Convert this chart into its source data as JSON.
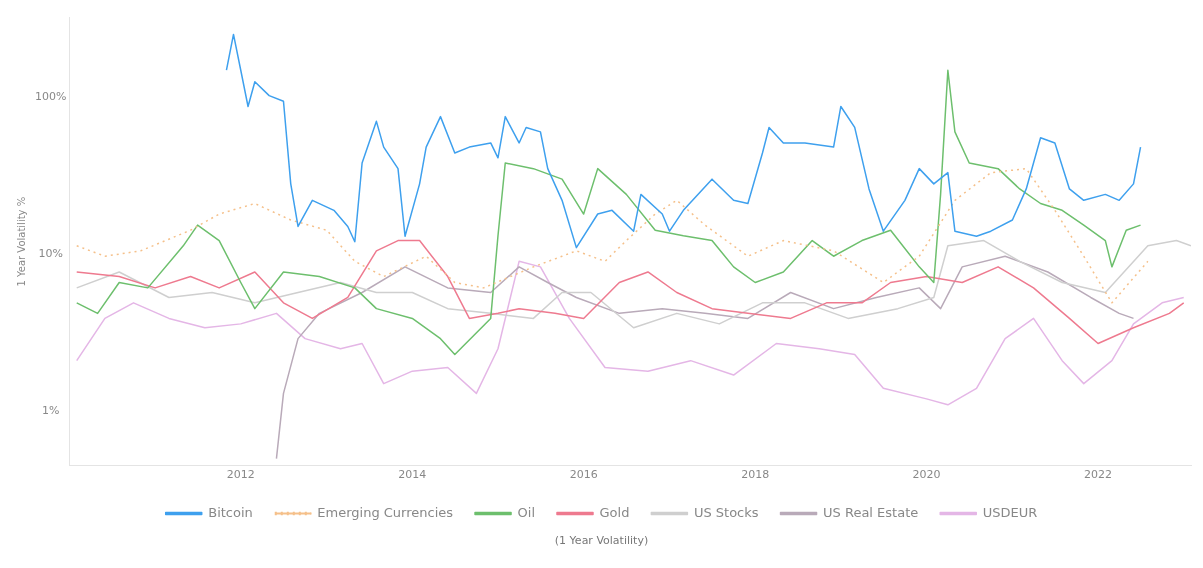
{
  "chart_data": {
    "type": "line",
    "ylabel": "1 Year Volatility %",
    "xlabel": "(1 Year Volatility)",
    "log": "y",
    "grid": false,
    "legend": "bottom",
    "marker": "none",
    "line_style": "solid",
    "xticks": [
      {
        "value": "2012-01-01",
        "label": "2012"
      },
      {
        "value": "2014-01-01",
        "label": "2014"
      },
      {
        "value": "2016-01-01",
        "label": "2016"
      },
      {
        "value": "2018-01-01",
        "label": "2018"
      },
      {
        "value": "2020-01-01",
        "label": "2020"
      },
      {
        "value": "2022-01-01",
        "label": "2022"
      }
    ],
    "xlim": [
      "2010-01",
      "2023-02"
    ],
    "ylim": [
      0.45,
      320
    ],
    "yticks": [
      {
        "value": 100,
        "label": "100%"
      },
      {
        "value": 10,
        "label": "10%"
      },
      {
        "value": 1,
        "label": "1%"
      }
    ],
    "series": [
      {
        "name": "Bitcoin",
        "color": "#3ea0ee",
        "x": [
          "2011-11",
          "2011-12",
          "2012-01",
          "2012-02",
          "2012-03",
          "2012-05",
          "2012-07",
          "2012-08",
          "2012-09",
          "2012-11",
          "2013-02",
          "2013-04",
          "2013-05",
          "2013-06",
          "2013-08",
          "2013-09",
          "2013-11",
          "2013-12",
          "2014-02",
          "2014-03",
          "2014-05",
          "2014-07",
          "2014-09",
          "2014-12",
          "2015-01",
          "2015-02",
          "2015-04",
          "2015-05",
          "2015-07",
          "2015-08",
          "2015-10",
          "2015-12",
          "2016-03",
          "2016-05",
          "2016-08",
          "2016-09",
          "2016-12",
          "2017-01",
          "2017-03",
          "2017-07",
          "2017-10",
          "2017-12",
          "2018-02",
          "2018-03",
          "2018-05",
          "2018-08",
          "2018-12",
          "2019-01",
          "2019-03",
          "2019-05",
          "2019-07",
          "2019-10",
          "2019-12",
          "2020-02",
          "2020-04",
          "2020-05",
          "2020-08",
          "2020-10",
          "2021-01",
          "2021-03",
          "2021-05",
          "2021-07",
          "2021-09",
          "2021-11",
          "2022-02",
          "2022-04",
          "2022-06",
          "2022-07"
        ],
        "values": [
          148,
          250,
          148,
          87,
          125,
          102,
          94,
          28,
          15,
          22,
          19,
          15,
          12,
          38,
          70,
          48,
          35,
          13,
          28,
          48,
          75,
          44,
          48,
          51,
          41,
          75,
          51,
          64,
          60,
          35,
          22,
          11,
          18,
          19,
          14,
          24,
          18,
          14,
          19,
          30,
          22,
          21,
          44,
          64,
          51,
          51,
          48,
          87,
          64,
          26,
          14,
          22,
          35,
          28,
          33,
          14,
          13,
          14,
          16.5,
          26,
          55,
          51,
          26,
          22,
          24,
          22,
          28,
          48
        ]
      },
      {
        "name": "Emerging Currencies",
        "color": "#f5c08a",
        "line_style": "dotted",
        "x": [
          "2010-02",
          "2010-06",
          "2010-11",
          "2011-06",
          "2011-10",
          "2012-03",
          "2012-08",
          "2013-01",
          "2013-05",
          "2013-09",
          "2014-03",
          "2014-07",
          "2014-11",
          "2015-06",
          "2015-10",
          "2015-12",
          "2016-04",
          "2016-07",
          "2016-11",
          "2017-02",
          "2017-06",
          "2017-12",
          "2018-05",
          "2018-12",
          "2019-07",
          "2019-12",
          "2020-05",
          "2020-10",
          "2021-03",
          "2021-07",
          "2021-11",
          "2022-03",
          "2022-08"
        ],
        "values": [
          11.3,
          9.7,
          10.5,
          14.2,
          18,
          21,
          16.5,
          14.2,
          9,
          7.2,
          9.7,
          6.6,
          6.1,
          8.3,
          9.7,
          10.5,
          9,
          12.2,
          18,
          22,
          15.3,
          9.7,
          12.2,
          10.5,
          6.6,
          9.7,
          22,
          33,
          35,
          19,
          9.7,
          4.9,
          9
        ]
      },
      {
        "name": "Oil",
        "color": "#6dbf6d",
        "x": [
          "2010-02",
          "2010-05",
          "2010-08",
          "2010-12",
          "2011-05",
          "2011-07",
          "2011-10",
          "2012-01",
          "2012-03",
          "2012-07",
          "2012-12",
          "2013-05",
          "2013-08",
          "2014-01",
          "2014-05",
          "2014-07",
          "2014-12",
          "2015-01",
          "2015-02",
          "2015-06",
          "2015-10",
          "2016-01",
          "2016-03",
          "2016-07",
          "2016-11",
          "2017-03",
          "2017-07",
          "2017-10",
          "2018-01",
          "2018-05",
          "2018-09",
          "2018-12",
          "2019-04",
          "2019-08",
          "2019-12",
          "2020-02",
          "2020-03",
          "2020-04",
          "2020-05",
          "2020-07",
          "2020-11",
          "2021-02",
          "2021-05",
          "2021-08",
          "2021-11",
          "2022-02",
          "2022-03",
          "2022-05",
          "2022-07"
        ],
        "values": [
          4.9,
          4.2,
          6.6,
          6.1,
          11.3,
          15.3,
          12.2,
          6.6,
          4.5,
          7.7,
          7.2,
          6.1,
          4.5,
          3.9,
          2.9,
          2.3,
          3.9,
          13.1,
          38,
          35,
          30,
          18,
          35,
          24,
          14.2,
          13.1,
          12.2,
          8.3,
          6.6,
          7.7,
          12.2,
          9.7,
          12.2,
          14.2,
          8.3,
          6.6,
          24,
          148,
          60,
          38,
          35,
          26,
          21,
          19,
          15.3,
          12.2,
          8.3,
          14.2,
          15.3
        ]
      },
      {
        "name": "Gold",
        "color": "#ee7a8f",
        "x": [
          "2010-02",
          "2010-08",
          "2011-01",
          "2011-06",
          "2011-10",
          "2012-03",
          "2012-07",
          "2012-11",
          "2013-04",
          "2013-08",
          "2013-11",
          "2014-02",
          "2014-06",
          "2014-09",
          "2015-01",
          "2015-04",
          "2015-09",
          "2016-01",
          "2016-06",
          "2016-10",
          "2017-02",
          "2017-07",
          "2017-12",
          "2018-06",
          "2018-11",
          "2019-04",
          "2019-08",
          "2020-01",
          "2020-06",
          "2020-11",
          "2021-04",
          "2021-09",
          "2022-01",
          "2022-06",
          "2022-11",
          "2023-01"
        ],
        "values": [
          7.7,
          7.2,
          6.1,
          7.2,
          6.1,
          7.7,
          4.9,
          3.9,
          5.3,
          10.5,
          12.2,
          12.2,
          7.2,
          3.9,
          4.2,
          4.5,
          4.2,
          3.9,
          6.6,
          7.7,
          5.7,
          4.5,
          4.2,
          3.9,
          4.9,
          4.9,
          6.6,
          7.2,
          6.6,
          8.3,
          6.1,
          3.9,
          2.7,
          3.4,
          4.2,
          4.9
        ]
      },
      {
        "name": "US Stocks",
        "color": "#cfcfcf",
        "x": [
          "2010-02",
          "2010-08",
          "2011-03",
          "2011-09",
          "2012-03",
          "2012-09",
          "2013-03",
          "2013-08",
          "2014-01",
          "2014-06",
          "2014-12",
          "2015-06",
          "2015-10",
          "2016-02",
          "2016-08",
          "2017-02",
          "2017-08",
          "2018-02",
          "2018-08",
          "2019-02",
          "2019-09",
          "2020-02",
          "2020-04",
          "2020-09",
          "2021-02",
          "2021-08",
          "2022-02",
          "2022-08",
          "2022-12",
          "2023-02"
        ],
        "values": [
          6.1,
          7.7,
          5.3,
          5.7,
          4.9,
          5.7,
          6.6,
          5.7,
          5.7,
          4.5,
          4.2,
          3.9,
          5.7,
          5.7,
          3.4,
          4.2,
          3.6,
          4.9,
          4.9,
          3.9,
          4.5,
          5.3,
          11.3,
          12.2,
          9,
          6.6,
          5.7,
          11.3,
          12.2,
          11.3
        ]
      },
      {
        "name": "US Real Estate",
        "color": "#b9aab9",
        "x": [
          "2012-06",
          "2012-07",
          "2012-09",
          "2012-12",
          "2013-06",
          "2013-12",
          "2014-06",
          "2014-12",
          "2015-04",
          "2015-08",
          "2015-12",
          "2016-06",
          "2016-12",
          "2017-06",
          "2017-12",
          "2018-06",
          "2018-12",
          "2019-06",
          "2019-12",
          "2020-03",
          "2020-06",
          "2020-12",
          "2021-06",
          "2021-12",
          "2022-04",
          "2022-06"
        ],
        "values": [
          0.5,
          1.3,
          2.9,
          4.2,
          5.7,
          8.3,
          6.1,
          5.7,
          8.3,
          6.6,
          5.3,
          4.2,
          4.5,
          4.2,
          3.9,
          5.7,
          4.5,
          5.3,
          6.1,
          4.5,
          8.3,
          9.7,
          7.7,
          5.3,
          4.2,
          3.9
        ]
      },
      {
        "name": "USDEUR",
        "color": "#e4b6e6",
        "x": [
          "2010-02",
          "2010-06",
          "2010-10",
          "2011-03",
          "2011-08",
          "2012-01",
          "2012-06",
          "2012-10",
          "2013-03",
          "2013-06",
          "2013-09",
          "2014-01",
          "2014-06",
          "2014-10",
          "2015-01",
          "2015-04",
          "2015-07",
          "2015-11",
          "2016-04",
          "2016-10",
          "2017-04",
          "2017-10",
          "2018-04",
          "2018-10",
          "2019-03",
          "2019-07",
          "2020-01",
          "2020-04",
          "2020-08",
          "2020-12",
          "2021-04",
          "2021-08",
          "2021-11",
          "2022-03",
          "2022-06",
          "2022-10",
          "2023-01"
        ],
        "values": [
          2.1,
          3.9,
          4.9,
          3.9,
          3.4,
          3.6,
          4.2,
          2.9,
          2.5,
          2.7,
          1.5,
          1.8,
          1.9,
          1.3,
          2.5,
          9,
          8.3,
          3.9,
          1.9,
          1.8,
          2.1,
          1.7,
          2.7,
          2.5,
          2.3,
          1.4,
          1.2,
          1.1,
          1.4,
          2.9,
          3.9,
          2.1,
          1.5,
          2.1,
          3.6,
          4.9,
          5.3
        ]
      }
    ]
  }
}
